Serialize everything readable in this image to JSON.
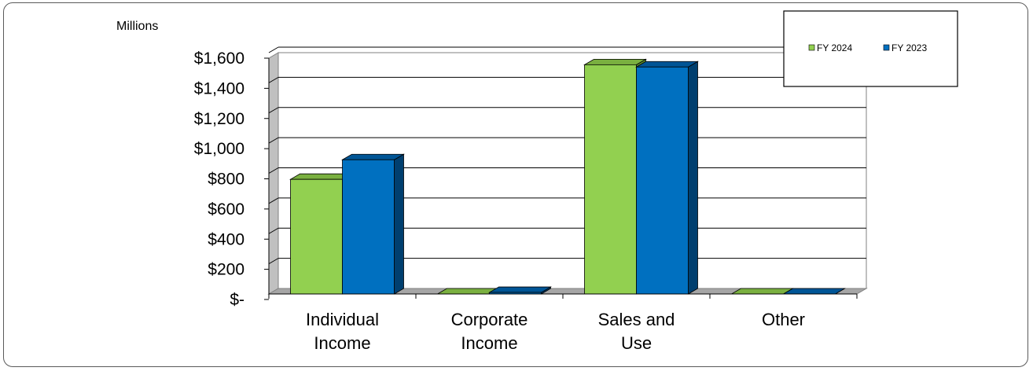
{
  "chart_data": {
    "type": "bar",
    "unit_label": "Millions",
    "categories": [
      [
        "Individual",
        "Income"
      ],
      [
        "Corporate",
        "Income"
      ],
      [
        "Sales and",
        "Use"
      ],
      [
        "Other"
      ]
    ],
    "series": [
      {
        "name": "FY 2024",
        "values": [
          760,
          0,
          1520,
          0
        ],
        "color": "#92d050",
        "side_color": "#5a8a2a",
        "top_color": "#7ab040"
      },
      {
        "name": "FY 2023",
        "values": [
          890,
          10,
          1505,
          0
        ],
        "color": "#0070c0",
        "side_color": "#003f6f",
        "top_color": "#005596"
      }
    ],
    "y_ticks": [
      {
        "value": 0,
        "label": "$-"
      },
      {
        "value": 200,
        "label": "$200"
      },
      {
        "value": 400,
        "label": "$400"
      },
      {
        "value": 600,
        "label": "$600"
      },
      {
        "value": 800,
        "label": "$800"
      },
      {
        "value": 1000,
        "label": "$1,000"
      },
      {
        "value": 1200,
        "label": "$1,200"
      },
      {
        "value": 1400,
        "label": "$1,400"
      },
      {
        "value": 1600,
        "label": "$1,600"
      }
    ],
    "ylim": [
      0,
      1600
    ],
    "grid": true,
    "legend_position": "top-right"
  }
}
